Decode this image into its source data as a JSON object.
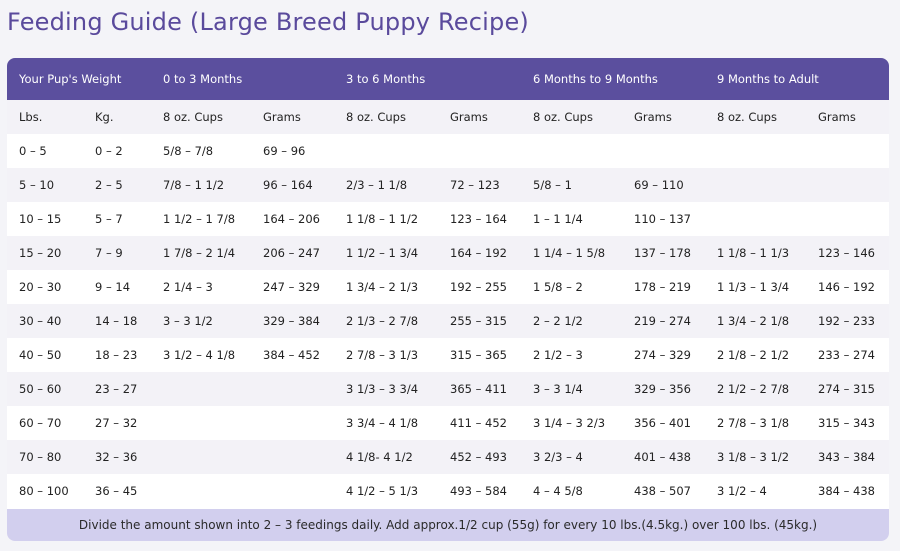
{
  "title": "Feeding Guide (Large Breed Puppy Recipe)",
  "colors": {
    "header_bg": "#5b4f9e",
    "title": "#5a4a9c",
    "footer_bg": "#d2cfee",
    "alt_row": "#f3f2f7"
  },
  "header": {
    "weight": "Your Pup's Weight",
    "group1": "0 to 3 Months",
    "group2": "3 to 6 Months",
    "group3": "6 Months to 9 Months",
    "group4": "9 Months to Adult"
  },
  "subheader": [
    "Lbs.",
    "Kg.",
    "8 oz. Cups",
    "Grams",
    "8 oz. Cups",
    "Grams",
    "8 oz. Cups",
    "Grams",
    "8 oz. Cups",
    "Grams"
  ],
  "rows": [
    [
      "0 – 5",
      "0 – 2",
      "5/8 – 7/8",
      "69 – 96",
      "",
      "",
      "",
      "",
      "",
      ""
    ],
    [
      "5 – 10",
      "2 – 5",
      "7/8 – 1 1/2",
      "96 – 164",
      "2/3 – 1 1/8",
      "72 – 123",
      "5/8 – 1",
      "69 – 110",
      "",
      ""
    ],
    [
      "10 – 15",
      "5 – 7",
      "1 1/2 – 1 7/8",
      "164 – 206",
      "1 1/8 – 1 1/2",
      "123 – 164",
      "1 – 1 1/4",
      "110 – 137",
      "",
      ""
    ],
    [
      "15 – 20",
      "7 – 9",
      "1 7/8 – 2 1/4",
      "206 – 247",
      "1 1/2 – 1 3/4",
      "164 – 192",
      "1 1/4 – 1 5/8",
      "137 – 178",
      " 1 1/8 – 1 1/3",
      "123 – 146"
    ],
    [
      "20 – 30",
      "9 – 14",
      "2 1/4 – 3",
      "247 – 329",
      "1 3/4 – 2 1/3",
      "192 – 255",
      "1 5/8 – 2",
      "178 – 219",
      "1 1/3 – 1 3/4",
      "146 – 192"
    ],
    [
      "30 – 40",
      "14 – 18",
      "3 – 3 1/2",
      "329 – 384",
      "2 1/3 – 2 7/8",
      "255 – 315",
      "2  – 2 1/2",
      "219 – 274",
      "1 3/4 – 2 1/8",
      "192 – 233"
    ],
    [
      "40 – 50",
      "18 – 23",
      "3 1/2 – 4 1/8",
      "384 – 452",
      "2 7/8 – 3 1/3",
      "315 – 365",
      "2 1/2 – 3",
      "274 – 329",
      "2 1/8 – 2 1/2",
      "233 – 274"
    ],
    [
      "50 – 60",
      "23 – 27",
      "",
      "",
      "3 1/3 –  3 3/4",
      "365 – 411",
      "3 – 3 1/4",
      "329 – 356",
      "2 1/2 – 2 7/8",
      "274 – 315"
    ],
    [
      "60 – 70",
      "27 – 32",
      "",
      "",
      "3 3/4 – 4 1/8",
      "411 – 452",
      "3 1/4 – 3 2/3",
      "356 – 401",
      "2 7/8 – 3 1/8",
      "315 – 343"
    ],
    [
      "70 – 80",
      "32 – 36",
      "",
      "",
      "4 1/8- 4 1/2",
      "452 – 493",
      "3 2/3 – 4",
      "401 – 438",
      "3 1/8 – 3 1/2",
      "343 – 384"
    ],
    [
      "80 – 100",
      "36 – 45",
      "",
      "",
      "4 1/2 – 5 1/3",
      "493 – 584",
      "4 – 4 5/8",
      "438 – 507",
      "3 1/2 – 4",
      "384 – 438"
    ]
  ],
  "footer": "Divide the amount shown into 2 – 3 feedings daily. Add approx.1/2 cup (55g) for every 10 lbs.(4.5kg.) over 100 lbs. (45kg.)"
}
